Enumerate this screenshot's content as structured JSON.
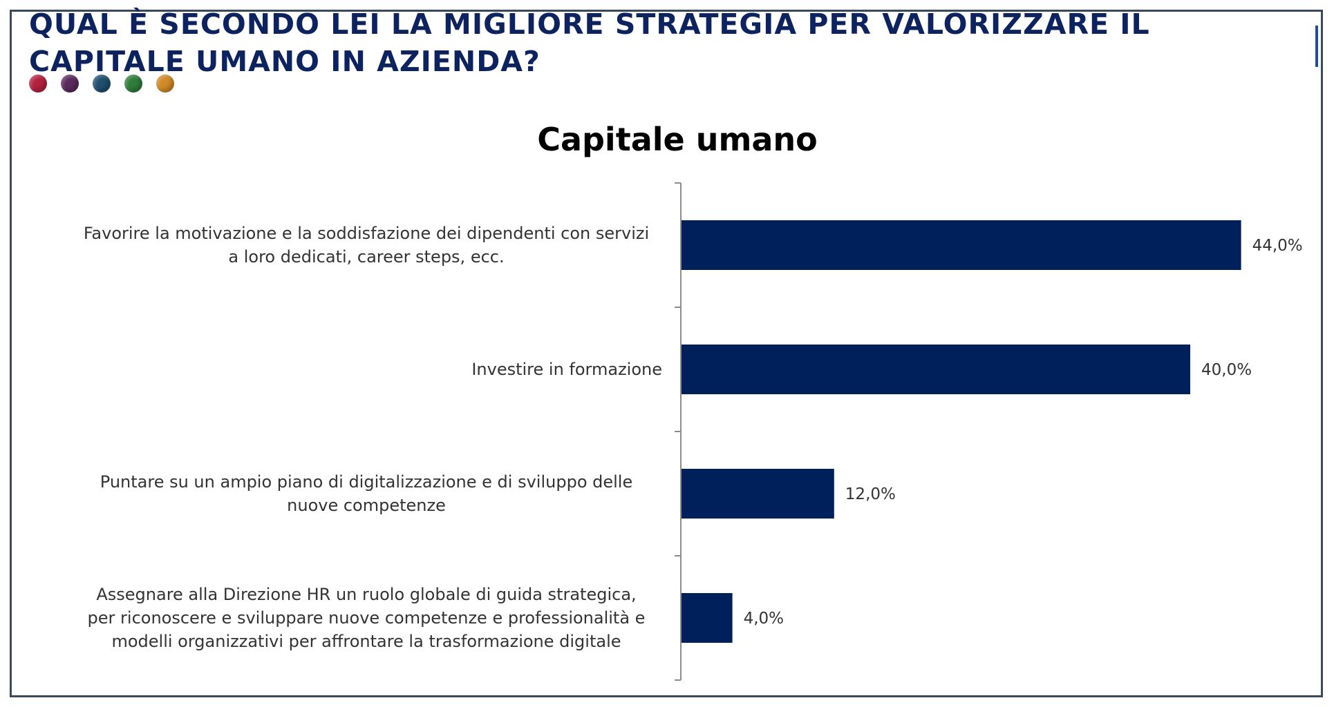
{
  "header": {
    "title": "QUAL È SECONDO LEI LA MIGLIORE STRATEGIA PER VALORIZZARE IL CAPITALE UMANO IN AZIENDA?",
    "decor_dot_colors": [
      "#b3213f",
      "#5a2a5e",
      "#1f4e6e",
      "#2e7d3a",
      "#d08a28"
    ]
  },
  "chart_data": {
    "type": "bar",
    "orientation": "horizontal",
    "title": "Capitale umano",
    "categories": [
      [
        "Favorire la motivazione e la soddisfazione dei dipendenti con servizi",
        "a loro dedicati, career steps, ecc."
      ],
      [
        "Investire in formazione"
      ],
      [
        "Puntare su un ampio piano di digitalizzazione e di sviluppo delle",
        "nuove competenze"
      ],
      [
        "Assegnare alla Direzione HR un ruolo globale di guida strategica,",
        "per riconoscere e sviluppare nuove competenze e professionalità e",
        "modelli organizzativi per affrontare la trasformazione digitale"
      ]
    ],
    "values": [
      44.0,
      40.0,
      12.0,
      4.0
    ],
    "value_labels": [
      "44,0%",
      "40,0%",
      "12,0%",
      "4,0%"
    ],
    "xlim": [
      0,
      50
    ],
    "bar_color": "#00205b",
    "grid": false,
    "legend": "none"
  }
}
